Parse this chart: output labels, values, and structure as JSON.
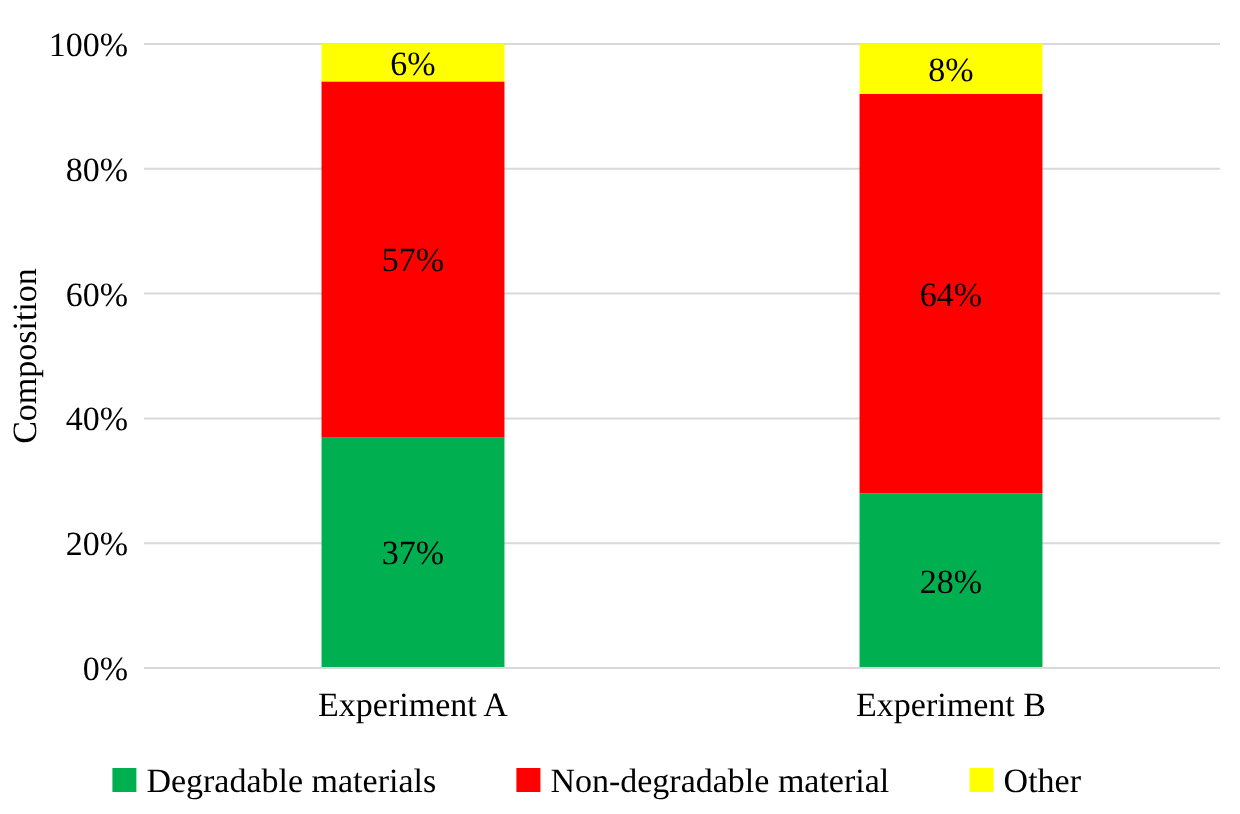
{
  "chart_data": {
    "type": "bar",
    "stacked": true,
    "ylabel": "Composition",
    "categories": [
      "Experiment A",
      "Experiment B"
    ],
    "series": [
      {
        "name": "Degradable materials",
        "color": "#00b050",
        "values": [
          37,
          28
        ],
        "value_labels": [
          "37%",
          "28%"
        ]
      },
      {
        "name": "Non-degradable material",
        "color": "#ff0000",
        "values": [
          57,
          64
        ],
        "value_labels": [
          "57%",
          "64%"
        ]
      },
      {
        "name": "Other",
        "color": "#ffff00",
        "values": [
          6,
          8
        ],
        "value_labels": [
          "6%",
          "8%"
        ]
      }
    ],
    "ylim": [
      0,
      100
    ],
    "yticks": [
      {
        "value": 0,
        "label": "0%"
      },
      {
        "value": 20,
        "label": "20%"
      },
      {
        "value": 40,
        "label": "40%"
      },
      {
        "value": 60,
        "label": "60%"
      },
      {
        "value": 80,
        "label": "80%"
      },
      {
        "value": 100,
        "label": "100%"
      }
    ],
    "grid": "y",
    "legend": "bottom"
  }
}
